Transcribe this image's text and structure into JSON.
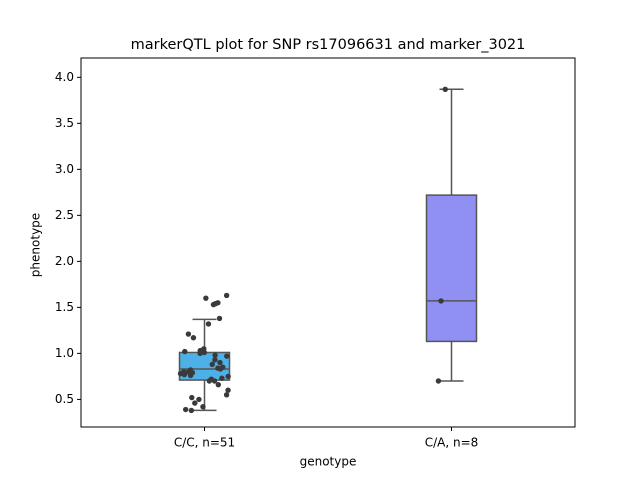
{
  "chart_data": {
    "type": "box",
    "title": "markerQTL plot for SNP rs17096631 and marker_3021",
    "xlabel": "genotype",
    "ylabel": "phenotype",
    "categories": [
      "C/C, n=51",
      "C/A, n=8"
    ],
    "boxes": [
      {
        "color": "#4db1e8",
        "whislo": 0.38,
        "q1": 0.71,
        "median": 0.83,
        "q3": 1.01,
        "whishi": 1.37,
        "points": [
          1.63,
          1.6,
          1.55,
          1.53,
          1.54,
          1.38,
          1.32,
          1.21,
          1.17,
          1.05,
          1.03,
          1.02,
          1.01,
          1.0,
          0.98,
          0.97,
          0.93,
          0.9,
          0.88,
          0.85,
          0.84,
          0.83,
          0.82,
          0.8,
          0.8,
          0.79,
          0.78,
          0.77,
          0.76,
          0.75,
          0.73,
          0.72,
          0.7,
          0.7,
          0.66,
          0.6,
          0.55,
          0.52,
          0.5,
          0.46,
          0.42,
          0.38,
          0.39
        ]
      },
      {
        "color": "#9090f2",
        "whislo": 0.7,
        "q1": 1.13,
        "median": 1.57,
        "q3": 2.72,
        "whishi": 3.87,
        "points": [
          3.87,
          1.57,
          0.7
        ]
      }
    ],
    "point_color": "#3a3a3a",
    "ylim": [
      0.2,
      4.21
    ],
    "yticks": [
      0.5,
      {
        "value": 1,
        "label": "1.0"
      },
      1.5,
      {
        "value": 2,
        "label": "2.0"
      },
      2.5,
      {
        "value": 3,
        "label": "3.0"
      },
      3.5,
      {
        "value": 4,
        "label": "4.0"
      }
    ]
  }
}
